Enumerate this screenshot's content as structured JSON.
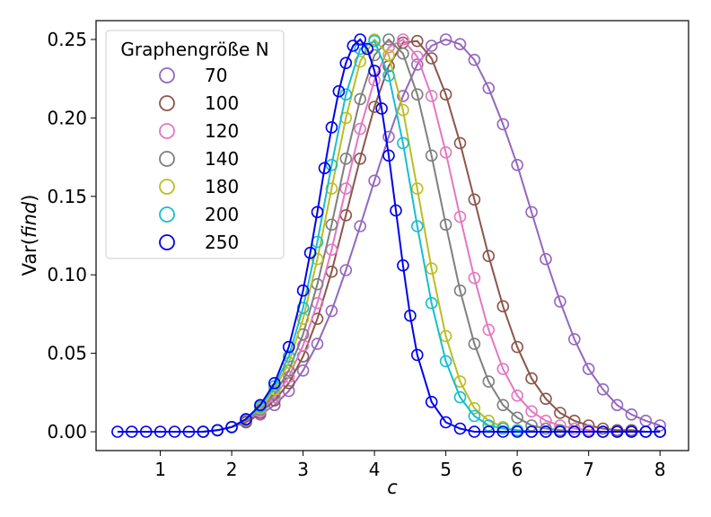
{
  "chart_data": {
    "type": "scatter",
    "xlabel": "c",
    "ylabel_prefix": "Var(",
    "ylabel_italic": "find",
    "ylabel_suffix": ")",
    "xlim": [
      0.1,
      8.4
    ],
    "ylim": [
      -0.012,
      0.262
    ],
    "xticks": [
      1,
      2,
      3,
      4,
      5,
      6,
      7,
      8
    ],
    "yticks": [
      0.0,
      0.05,
      0.1,
      0.15,
      0.2,
      0.25
    ],
    "ytick_labels": [
      "0.00",
      "0.05",
      "0.10",
      "0.15",
      "0.20",
      "0.25"
    ],
    "legend": {
      "title": "Graphengröße N",
      "position": "top-left"
    },
    "series": [
      {
        "name": "70",
        "color": "#9467bd",
        "x": [
          1.6,
          1.8,
          2.0,
          2.2,
          2.4,
          2.6,
          2.8,
          3.0,
          3.2,
          3.4,
          3.6,
          3.8,
          4.0,
          4.2,
          4.4,
          4.6,
          4.8,
          5.0,
          5.2,
          5.4,
          5.6,
          5.8,
          6.0,
          6.2,
          6.4,
          6.6,
          6.8,
          7.0,
          7.2,
          7.4,
          7.6,
          7.8,
          8.0
        ],
        "y": [
          0.0,
          0.001,
          0.003,
          0.006,
          0.011,
          0.017,
          0.026,
          0.039,
          0.056,
          0.077,
          0.103,
          0.131,
          0.16,
          0.188,
          0.214,
          0.234,
          0.246,
          0.25,
          0.247,
          0.237,
          0.219,
          0.196,
          0.17,
          0.14,
          0.11,
          0.083,
          0.059,
          0.04,
          0.027,
          0.017,
          0.011,
          0.007,
          0.004
        ]
      },
      {
        "name": "100",
        "color": "#8c564b",
        "x": [
          1.6,
          1.8,
          2.0,
          2.2,
          2.4,
          2.6,
          2.8,
          3.0,
          3.2,
          3.4,
          3.6,
          3.8,
          4.0,
          4.2,
          4.4,
          4.6,
          4.8,
          5.0,
          5.2,
          5.4,
          5.6,
          5.8,
          6.0,
          6.2,
          6.4,
          6.6,
          6.8,
          7.0,
          7.2,
          7.4,
          7.6,
          7.8,
          8.0
        ],
        "y": [
          0.0,
          0.001,
          0.003,
          0.006,
          0.012,
          0.02,
          0.031,
          0.048,
          0.072,
          0.102,
          0.138,
          0.174,
          0.207,
          0.233,
          0.248,
          0.249,
          0.238,
          0.215,
          0.184,
          0.148,
          0.112,
          0.08,
          0.054,
          0.034,
          0.021,
          0.012,
          0.007,
          0.004,
          0.002,
          0.001,
          0.001,
          0.0,
          0.0
        ]
      },
      {
        "name": "120",
        "color": "#e377c2",
        "x": [
          1.6,
          1.8,
          2.0,
          2.2,
          2.4,
          2.6,
          2.8,
          3.0,
          3.2,
          3.4,
          3.6,
          3.8,
          4.0,
          4.2,
          4.4,
          4.6,
          4.8,
          5.0,
          5.2,
          5.4,
          5.6,
          5.8,
          6.0,
          6.2,
          6.4,
          6.6,
          6.8,
          7.0,
          7.2,
          7.4,
          7.6,
          7.8,
          8.0
        ],
        "y": [
          0.0,
          0.001,
          0.003,
          0.007,
          0.013,
          0.022,
          0.035,
          0.055,
          0.082,
          0.116,
          0.155,
          0.193,
          0.224,
          0.245,
          0.25,
          0.239,
          0.214,
          0.178,
          0.137,
          0.098,
          0.065,
          0.04,
          0.023,
          0.013,
          0.007,
          0.004,
          0.002,
          0.001,
          0.0,
          0.0,
          0.0,
          0.0,
          0.0
        ]
      },
      {
        "name": "140",
        "color": "#7f7f7f",
        "x": [
          1.6,
          1.8,
          2.0,
          2.2,
          2.4,
          2.6,
          2.8,
          3.0,
          3.2,
          3.4,
          3.6,
          3.8,
          4.0,
          4.2,
          4.4,
          4.6,
          4.8,
          5.0,
          5.2,
          5.4,
          5.6,
          5.8,
          6.0,
          6.2,
          6.4,
          6.6,
          6.8,
          7.0,
          7.2,
          7.4,
          7.6,
          7.8,
          8.0
        ],
        "y": [
          0.0,
          0.001,
          0.003,
          0.007,
          0.014,
          0.024,
          0.039,
          0.062,
          0.094,
          0.132,
          0.174,
          0.212,
          0.24,
          0.25,
          0.241,
          0.215,
          0.176,
          0.132,
          0.09,
          0.056,
          0.032,
          0.017,
          0.009,
          0.004,
          0.002,
          0.001,
          0.0,
          0.0,
          0.0,
          0.0,
          0.0,
          0.0,
          0.0
        ]
      },
      {
        "name": "180",
        "color": "#bcbd22",
        "x": [
          1.6,
          1.8,
          2.0,
          2.2,
          2.4,
          2.6,
          2.8,
          3.0,
          3.2,
          3.4,
          3.6,
          3.8,
          4.0,
          4.2,
          4.4,
          4.6,
          4.8,
          5.0,
          5.2,
          5.4,
          5.6,
          5.8,
          6.0,
          6.2,
          6.4,
          6.6,
          6.8,
          7.0,
          7.2,
          7.4,
          7.6,
          7.8,
          8.0
        ],
        "y": [
          0.0,
          0.001,
          0.003,
          0.008,
          0.015,
          0.027,
          0.044,
          0.072,
          0.11,
          0.155,
          0.2,
          0.236,
          0.25,
          0.24,
          0.205,
          0.155,
          0.104,
          0.061,
          0.032,
          0.015,
          0.007,
          0.003,
          0.001,
          0.0,
          0.0,
          0.0,
          0.0,
          0.0,
          0.0,
          0.0,
          0.0,
          0.0,
          0.0
        ]
      },
      {
        "name": "200",
        "color": "#17becf",
        "x": [
          1.6,
          1.8,
          2.0,
          2.2,
          2.4,
          2.6,
          2.8,
          3.0,
          3.2,
          3.4,
          3.6,
          3.8,
          4.0,
          4.2,
          4.4,
          4.6,
          4.8,
          5.0,
          5.2,
          5.4,
          5.6,
          5.8,
          6.0,
          6.2,
          6.4,
          6.6,
          6.8,
          7.0,
          7.2,
          7.4,
          7.6,
          7.8,
          8.0
        ],
        "y": [
          0.0,
          0.001,
          0.003,
          0.008,
          0.016,
          0.029,
          0.048,
          0.079,
          0.121,
          0.17,
          0.215,
          0.244,
          0.249,
          0.227,
          0.184,
          0.131,
          0.082,
          0.045,
          0.022,
          0.01,
          0.004,
          0.002,
          0.001,
          0.0,
          0.0,
          0.0,
          0.0,
          0.0,
          0.0,
          0.0,
          0.0,
          0.0,
          0.0
        ]
      },
      {
        "name": "250",
        "color": "#0000ee",
        "x": [
          0.4,
          0.6,
          0.8,
          1.0,
          1.2,
          1.4,
          1.6,
          1.8,
          2.0,
          2.2,
          2.4,
          2.6,
          2.8,
          3.0,
          3.1,
          3.2,
          3.3,
          3.4,
          3.5,
          3.6,
          3.7,
          3.8,
          3.9,
          4.0,
          4.1,
          4.2,
          4.3,
          4.4,
          4.5,
          4.6,
          4.8,
          5.0,
          5.2,
          5.4,
          5.6,
          5.8,
          6.0,
          6.2,
          6.4,
          6.6,
          6.8,
          7.0,
          7.2,
          7.4,
          7.6,
          7.8,
          8.0
        ],
        "y": [
          0.0,
          0.0,
          0.0,
          0.0,
          0.0,
          0.0,
          0.0,
          0.001,
          0.003,
          0.008,
          0.017,
          0.031,
          0.054,
          0.09,
          0.114,
          0.14,
          0.168,
          0.194,
          0.217,
          0.235,
          0.246,
          0.25,
          0.244,
          0.23,
          0.206,
          0.176,
          0.141,
          0.106,
          0.074,
          0.049,
          0.019,
          0.006,
          0.002,
          0.0,
          0.0,
          0.0,
          0.0,
          0.0,
          0.0,
          0.0,
          0.0,
          0.0,
          0.0,
          0.0,
          0.0,
          0.0,
          0.0
        ]
      }
    ]
  }
}
